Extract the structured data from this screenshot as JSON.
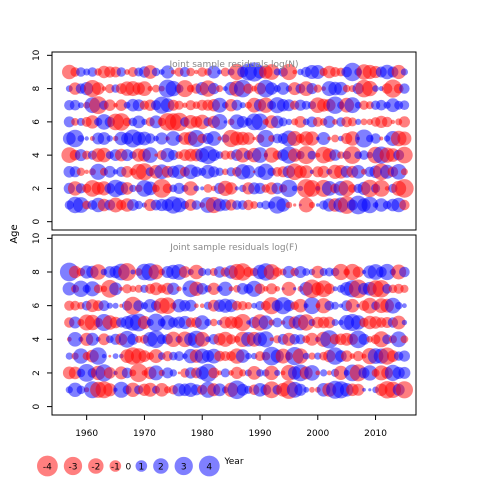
{
  "y_axis_label": "Age",
  "x_axis_label": "Year",
  "colors": {
    "negative": "#ff0000",
    "positive": "#0000ff",
    "panel_title": "#888888",
    "axis": "#000000"
  },
  "chart_data": [
    {
      "type": "scatter",
      "subtype": "bubble",
      "title": "Joint sample residuals log(N)",
      "ylabel": "Age",
      "xlim": [
        1954,
        2017
      ],
      "ylim": [
        -0.5,
        10.2
      ],
      "x_ticks": [
        1960,
        1970,
        1980,
        1990,
        2000,
        2010
      ],
      "y_ticks": [
        0,
        2,
        4,
        6,
        8,
        10
      ],
      "ages": [
        1,
        2,
        3,
        4,
        5,
        6,
        7,
        8,
        9
      ],
      "years": [
        1957,
        2015
      ]
    },
    {
      "type": "scatter",
      "subtype": "bubble",
      "title": "Joint sample residuals log(F)",
      "xlabel": "Year",
      "ylabel": "Age",
      "xlim": [
        1954,
        2017
      ],
      "ylim": [
        -0.5,
        10.2
      ],
      "x_ticks": [
        1960,
        1970,
        1980,
        1990,
        2000,
        2010
      ],
      "y_ticks": [
        0,
        2,
        4,
        6,
        8,
        10
      ],
      "ages": [
        1,
        2,
        3,
        4,
        5,
        6,
        7,
        8
      ],
      "years": [
        1957,
        2015
      ]
    }
  ],
  "legend": {
    "placement": "bottom-left",
    "entries": [
      {
        "label": "-4",
        "value": -4
      },
      {
        "label": "-3",
        "value": -3
      },
      {
        "label": "-2",
        "value": -2
      },
      {
        "label": "-1",
        "value": -1
      },
      {
        "label": "0",
        "value": 0
      },
      {
        "label": "1",
        "value": 1
      },
      {
        "label": "2",
        "value": 2
      },
      {
        "label": "3",
        "value": 3
      },
      {
        "label": "4",
        "value": 4
      }
    ]
  }
}
